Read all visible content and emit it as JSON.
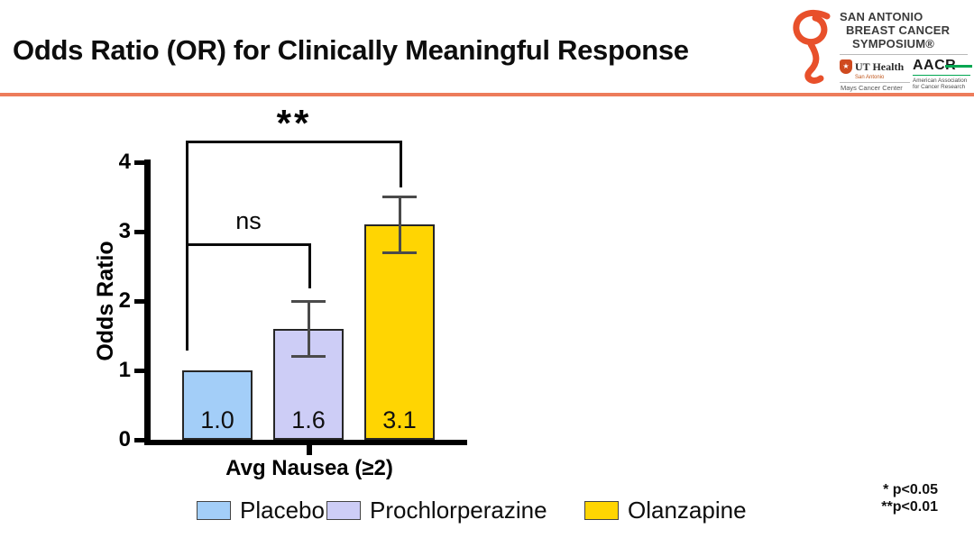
{
  "slide": {
    "title": "Odds Ratio (OR) for Clinically Meaningful Response",
    "accent_color": "#ED7C5B"
  },
  "logos": {
    "sabcs": {
      "line1": "SAN ANTONIO",
      "line2": "BREAST CANCER",
      "line3": "SYMPOSIUM®",
      "ribbon_color": "#E8502B"
    },
    "ut_health": {
      "name": "UT Health",
      "sub": "San Antonio",
      "division": "Mays Cancer Center",
      "star": "★"
    },
    "aacr": {
      "name": "AACR",
      "sub_line1": "American Association",
      "sub_line2": "for Cancer Research",
      "green": "#00a651"
    }
  },
  "chart_data": {
    "type": "bar",
    "title": "",
    "xlabel": "Avg Nausea (≥2)",
    "ylabel": "Odds Ratio",
    "ylim": [
      0,
      4
    ],
    "yticks": [
      0,
      1,
      2,
      3,
      4
    ],
    "grid": false,
    "categories": [
      "Placebo",
      "Prochlorperazine",
      "Olanzapine"
    ],
    "values": [
      1.0,
      1.6,
      3.1
    ],
    "value_labels": [
      "1.0",
      "1.6",
      "3.1"
    ],
    "bar_colors": [
      "#A3CEF8",
      "#CDCDF6",
      "#FFD502"
    ],
    "error_bars": [
      null,
      {
        "low": 1.2,
        "high": 2.0
      },
      {
        "low": 2.7,
        "high": 3.5
      }
    ],
    "significance": [
      {
        "groups": [
          "Placebo",
          "Prochlorperazine"
        ],
        "label": "ns"
      },
      {
        "groups": [
          "Placebo",
          "Olanzapine"
        ],
        "label": "**"
      }
    ],
    "legend_position": "bottom",
    "legend": [
      {
        "label": "Placebo",
        "color": "#A3CEF8"
      },
      {
        "label": "Prochlorperazine",
        "color": "#CDCDF6"
      },
      {
        "label": "Olanzapine",
        "color": "#FFD502"
      }
    ]
  },
  "footnotes": {
    "line1": "* p<0.05",
    "line2": "**p<0.01"
  }
}
